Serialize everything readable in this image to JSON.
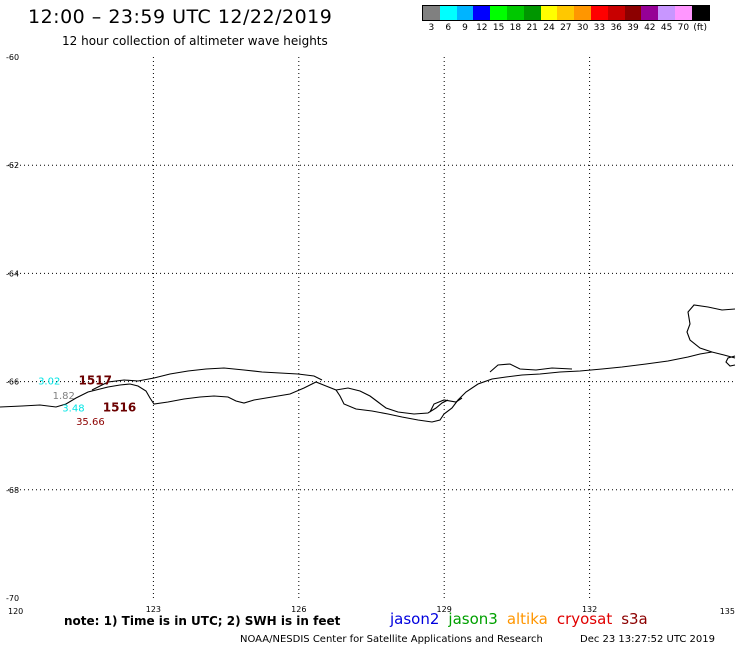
{
  "title": "12:00 – 23:59 UTC 12/22/2019",
  "subtitle": "12 hour collection of altimeter wave heights",
  "legend": {
    "unit": "(ft)",
    "bins": [
      {
        "label": "3",
        "color": "#808080"
      },
      {
        "label": "6",
        "color": "#00ffff"
      },
      {
        "label": "9",
        "color": "#00b4ff"
      },
      {
        "label": "12",
        "color": "#0000ff"
      },
      {
        "label": "15",
        "color": "#00ff00"
      },
      {
        "label": "18",
        "color": "#00c800"
      },
      {
        "label": "21",
        "color": "#009600"
      },
      {
        "label": "24",
        "color": "#ffff00"
      },
      {
        "label": "27",
        "color": "#ffc800"
      },
      {
        "label": "30",
        "color": "#ff9600"
      },
      {
        "label": "33",
        "color": "#ff0000"
      },
      {
        "label": "36",
        "color": "#c80000"
      },
      {
        "label": "39",
        "color": "#8c0000"
      },
      {
        "label": "42",
        "color": "#960096"
      },
      {
        "label": "45",
        "color": "#c896ff"
      },
      {
        "label": "70",
        "color": "#ff96ff"
      },
      {
        "label": "",
        "color": "#000000"
      }
    ]
  },
  "map": {
    "lon_range": [
      120,
      135
    ],
    "lat_range": [
      -70,
      -60
    ],
    "x_ticks": [
      {
        "value": 120,
        "label": "120"
      },
      {
        "value": 123,
        "label": "123"
      },
      {
        "value": 126,
        "label": "126"
      },
      {
        "value": 129,
        "label": "129"
      },
      {
        "value": 132,
        "label": "132"
      },
      {
        "value": 135,
        "label": "135"
      }
    ],
    "y_ticks": [
      {
        "value": -60,
        "label": "-60"
      },
      {
        "value": -62,
        "label": "-62"
      },
      {
        "value": -64,
        "label": "-64"
      },
      {
        "value": -66,
        "label": "-66"
      },
      {
        "value": -68,
        "label": "-68"
      },
      {
        "value": -70,
        "label": "-70"
      }
    ],
    "observations": [
      {
        "lon": 120.85,
        "lat": -66.05,
        "text": "3.02",
        "color": "#00e5e5"
      },
      {
        "lon": 121.15,
        "lat": -66.32,
        "text": "1.82",
        "color": "#808080"
      },
      {
        "lon": 121.35,
        "lat": -66.55,
        "text": "3.48",
        "color": "#00e5e5"
      },
      {
        "lon": 121.7,
        "lat": -66.8,
        "text": "35.66",
        "color": "#8c0000"
      }
    ],
    "orbits": [
      {
        "lon": 121.8,
        "lat": -66.05,
        "text": "1517"
      },
      {
        "lon": 122.3,
        "lat": -66.55,
        "text": "1516"
      }
    ]
  },
  "note": "note: 1) Time is in UTC; 2) SWH is in feet",
  "satellites": [
    {
      "name": "jason2",
      "color": "#0000dd"
    },
    {
      "name": "jason3",
      "color": "#00a000"
    },
    {
      "name": "altika",
      "color": "#ff9600"
    },
    {
      "name": "cryosat",
      "color": "#e00000"
    },
    {
      "name": "s3a",
      "color": "#8c0000"
    }
  ],
  "credit": "NOAA/NESDIS Center for Satellite Applications and Research",
  "timestamp": "Dec 23 13:27:52 UTC 2019"
}
